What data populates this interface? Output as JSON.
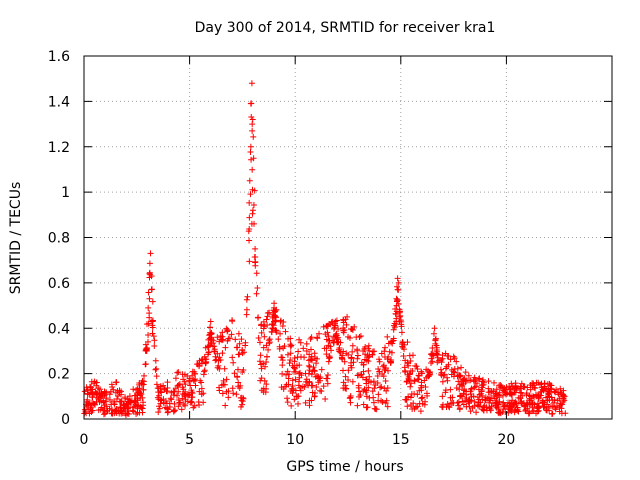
{
  "chart_data": {
    "type": "scatter",
    "title": "Day 300 of 2014, SRMTID for receiver kra1",
    "xlabel": "GPS time / hours",
    "ylabel": "SRMTID / TECUs",
    "xlim": [
      0,
      25
    ],
    "ylim": [
      0,
      1.6
    ],
    "xticks": [
      0,
      5,
      10,
      15,
      20
    ],
    "xtick_labels": [
      "0",
      "5",
      "10",
      "15",
      "20"
    ],
    "yticks": [
      0,
      0.2,
      0.4,
      0.6,
      0.8,
      1.0,
      1.2,
      1.4,
      1.6
    ],
    "ytick_labels": [
      "0",
      "0.2",
      "0.4",
      "0.6",
      "0.8",
      "1",
      "1.2",
      "1.4",
      "1.6"
    ],
    "grid": true,
    "marker": "+",
    "marker_color": "#ff0000",
    "x_range_of_data": [
      0,
      22.8
    ],
    "series": [
      {
        "name": "SRMTID",
        "background_levels": [
          {
            "x": 0.0,
            "y": 0.09
          },
          {
            "x": 0.5,
            "y": 0.1
          },
          {
            "x": 1.0,
            "y": 0.07
          },
          {
            "x": 1.5,
            "y": 0.1
          },
          {
            "x": 2.0,
            "y": 0.05
          },
          {
            "x": 2.5,
            "y": 0.09
          },
          {
            "x": 3.0,
            "y": 0.12
          },
          {
            "x": 3.5,
            "y": 0.08
          },
          {
            "x": 4.0,
            "y": 0.1
          },
          {
            "x": 4.5,
            "y": 0.12
          },
          {
            "x": 5.0,
            "y": 0.11
          },
          {
            "x": 5.5,
            "y": 0.17
          },
          {
            "x": 6.0,
            "y": 0.2
          },
          {
            "x": 6.5,
            "y": 0.22
          },
          {
            "x": 7.0,
            "y": 0.26
          },
          {
            "x": 7.5,
            "y": 0.2
          },
          {
            "x": 8.0,
            "y": 0.28
          },
          {
            "x": 8.5,
            "y": 0.25
          },
          {
            "x": 9.0,
            "y": 0.3
          },
          {
            "x": 9.5,
            "y": 0.25
          },
          {
            "x": 10.0,
            "y": 0.2
          },
          {
            "x": 10.5,
            "y": 0.2
          },
          {
            "x": 11.0,
            "y": 0.22
          },
          {
            "x": 11.5,
            "y": 0.24
          },
          {
            "x": 12.0,
            "y": 0.25
          },
          {
            "x": 12.5,
            "y": 0.26
          },
          {
            "x": 13.0,
            "y": 0.22
          },
          {
            "x": 13.5,
            "y": 0.19
          },
          {
            "x": 14.0,
            "y": 0.16
          },
          {
            "x": 14.5,
            "y": 0.23
          },
          {
            "x": 15.0,
            "y": 0.23
          },
          {
            "x": 15.5,
            "y": 0.18
          },
          {
            "x": 16.0,
            "y": 0.12
          },
          {
            "x": 16.5,
            "y": 0.15
          },
          {
            "x": 17.0,
            "y": 0.18
          },
          {
            "x": 17.5,
            "y": 0.16
          },
          {
            "x": 18.0,
            "y": 0.12
          },
          {
            "x": 18.5,
            "y": 0.11
          },
          {
            "x": 19.0,
            "y": 0.1
          },
          {
            "x": 19.5,
            "y": 0.09
          },
          {
            "x": 20.0,
            "y": 0.08
          },
          {
            "x": 20.5,
            "y": 0.1
          },
          {
            "x": 21.0,
            "y": 0.09
          },
          {
            "x": 21.5,
            "y": 0.1
          },
          {
            "x": 22.0,
            "y": 0.09
          },
          {
            "x": 22.5,
            "y": 0.08
          },
          {
            "x": 22.8,
            "y": 0.07
          }
        ],
        "peaks": [
          {
            "x": 3.15,
            "y": 0.73
          },
          {
            "x": 7.95,
            "y": 1.48
          },
          {
            "x": 14.85,
            "y": 0.62
          },
          {
            "x": 16.6,
            "y": 0.4
          },
          {
            "x": 11.9,
            "y": 0.43
          },
          {
            "x": 6.0,
            "y": 0.43
          },
          {
            "x": 9.0,
            "y": 0.51
          }
        ]
      }
    ]
  }
}
